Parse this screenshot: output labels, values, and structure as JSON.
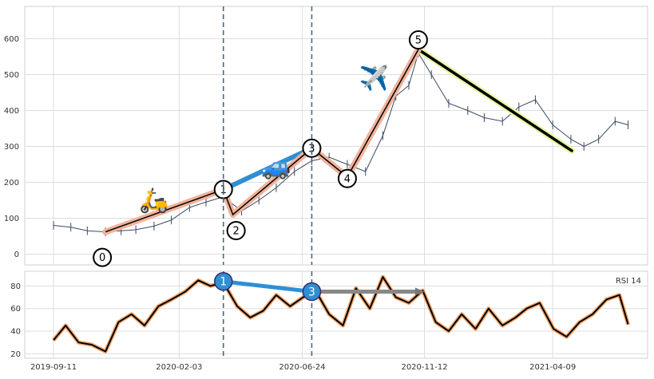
{
  "chart_data": [
    {
      "type": "line",
      "subtype": "candlestick-style price with Elliott wave annotation",
      "title": "",
      "xlabel": "",
      "ylabel": "",
      "ylim": [
        -30,
        690
      ],
      "yticks": [
        0,
        100,
        200,
        300,
        400,
        500,
        600
      ],
      "xlim": [
        "2019-09-11",
        "2021-07-10"
      ],
      "x_tick_labels": [
        "2019-09-11",
        "2020-02-03",
        "2020-06-24",
        "2020-11-12",
        "2021-04-09"
      ],
      "grid": true,
      "price_series": {
        "x": [
          "2019-09-11",
          "2019-10-01",
          "2019-10-20",
          "2019-11-10",
          "2019-11-28",
          "2019-12-15",
          "2020-01-05",
          "2020-01-25",
          "2020-02-15",
          "2020-03-05",
          "2020-03-25",
          "2020-04-15",
          "2020-05-05",
          "2020-05-25",
          "2020-06-15",
          "2020-07-05",
          "2020-07-25",
          "2020-08-15",
          "2020-09-05",
          "2020-09-25",
          "2020-10-10",
          "2020-10-25",
          "2020-11-05",
          "2020-11-20",
          "2020-12-10",
          "2021-01-01",
          "2021-01-20",
          "2021-02-10",
          "2021-03-01",
          "2021-03-20",
          "2021-04-09",
          "2021-04-30",
          "2021-05-15",
          "2021-06-01",
          "2021-06-20",
          "2021-07-05"
        ],
        "y": [
          80,
          75,
          65,
          62,
          65,
          68,
          78,
          95,
          130,
          145,
          160,
          120,
          150,
          185,
          230,
          260,
          270,
          250,
          230,
          330,
          440,
          470,
          560,
          500,
          420,
          400,
          380,
          370,
          410,
          430,
          360,
          320,
          300,
          320,
          370,
          360
        ]
      },
      "wave": {
        "points": [
          {
            "label": "0",
            "x": "2019-11-10",
            "y": 62
          },
          {
            "label": "1",
            "x": "2020-03-25",
            "y": 180
          },
          {
            "label": "2",
            "x": "2020-04-05",
            "y": 110
          },
          {
            "label": "3",
            "x": "2020-07-05",
            "y": 295
          },
          {
            "label": "4",
            "x": "2020-08-15",
            "y": 215
          },
          {
            "label": "5",
            "x": "2020-11-05",
            "y": 570
          }
        ],
        "line_color": "#000000",
        "glow_color": "#f0b29a"
      },
      "trend_lines": [
        {
          "from": {
            "x": "2020-03-25",
            "y": 180
          },
          "to": {
            "x": "2020-07-05",
            "y": 295
          },
          "color": "#2e8fd3",
          "role": "projection"
        },
        {
          "from": {
            "x": "2020-11-05",
            "y": 570
          },
          "to": {
            "x": "2021-05-01",
            "y": 288
          },
          "color": "#000000",
          "glow": "#e6f7a0",
          "role": "decline"
        }
      ],
      "vertical_markers": [
        "2020-03-25",
        "2020-07-05"
      ],
      "emoji_markers": [
        {
          "symbol": "🛵",
          "x": "2020-01-05",
          "y": 150
        },
        {
          "symbol": "🚙",
          "x": "2020-05-25",
          "y": 245
        },
        {
          "symbol": "✈️",
          "x": "2020-09-15",
          "y": 490
        }
      ]
    },
    {
      "type": "line",
      "title": "",
      "legend_text": "RSI 14",
      "legend_position": "top-right",
      "ylim": [
        16,
        93
      ],
      "yticks": [
        20,
        40,
        60,
        80
      ],
      "grid": true,
      "series": [
        {
          "name": "RSI 14",
          "x": [
            "2019-09-11",
            "2019-09-25",
            "2019-10-10",
            "2019-10-25",
            "2019-11-10",
            "2019-11-25",
            "2019-12-10",
            "2019-12-25",
            "2020-01-10",
            "2020-01-25",
            "2020-02-10",
            "2020-02-25",
            "2020-03-10",
            "2020-03-25",
            "2020-04-10",
            "2020-04-25",
            "2020-05-10",
            "2020-05-25",
            "2020-06-10",
            "2020-06-25",
            "2020-07-10",
            "2020-07-25",
            "2020-08-10",
            "2020-08-25",
            "2020-09-10",
            "2020-09-25",
            "2020-10-10",
            "2020-10-25",
            "2020-11-10",
            "2020-11-25",
            "2020-12-10",
            "2020-12-25",
            "2021-01-10",
            "2021-01-25",
            "2021-02-10",
            "2021-02-25",
            "2021-03-10",
            "2021-03-25",
            "2021-04-10",
            "2021-04-25",
            "2021-05-10",
            "2021-05-25",
            "2021-06-10",
            "2021-06-25",
            "2021-07-05"
          ],
          "y": [
            32,
            45,
            30,
            28,
            22,
            48,
            55,
            45,
            62,
            68,
            75,
            85,
            80,
            83,
            62,
            52,
            58,
            72,
            62,
            70,
            75,
            55,
            45,
            78,
            60,
            88,
            70,
            65,
            76,
            48,
            40,
            55,
            42,
            60,
            45,
            52,
            60,
            65,
            42,
            35,
            48,
            55,
            68,
            72,
            46
          ]
        }
      ],
      "trend_lines": [
        {
          "from": {
            "x": "2020-03-25",
            "y": 84
          },
          "to": {
            "x": "2020-07-05",
            "y": 75
          },
          "color": "#2e8fd3"
        },
        {
          "from": {
            "x": "2020-07-05",
            "y": 75
          },
          "to": {
            "x": "2020-11-05",
            "y": 75
          },
          "color": "#888888"
        }
      ],
      "markers": [
        {
          "label": "1",
          "x": "2020-03-25",
          "y": 84
        },
        {
          "label": "3",
          "x": "2020-07-05",
          "y": 75
        }
      ]
    }
  ]
}
